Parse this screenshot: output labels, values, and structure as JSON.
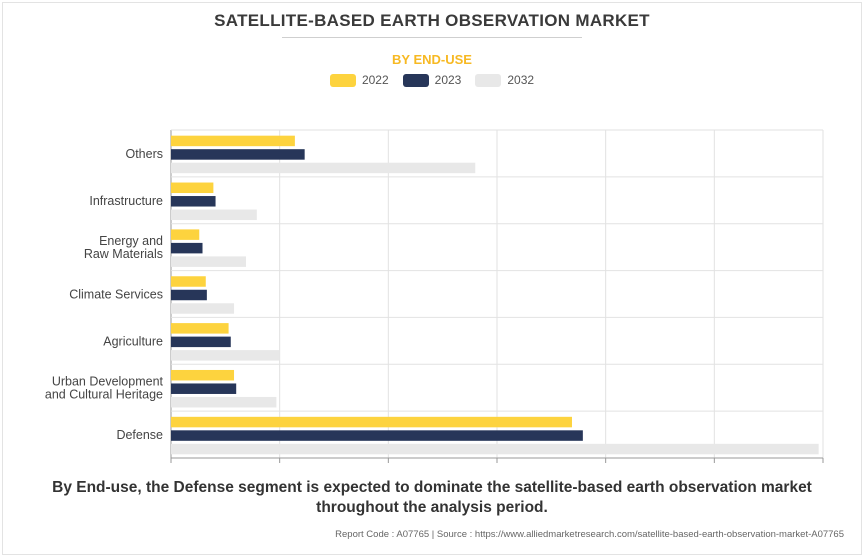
{
  "title": "SATELLITE-BASED EARTH OBSERVATION MARKET",
  "subtitle": "BY END-USE",
  "colors": {
    "2022": "#fdd33e",
    "2023": "#273659",
    "2032": "#e8e8e8"
  },
  "chart_data": {
    "type": "bar",
    "orientation": "horizontal",
    "categories": [
      "Others",
      "Infrastructure",
      "Energy and\nRaw Materials",
      "Climate Services",
      "Agriculture",
      "Urban Development\nand Cultural Heritage",
      "Defense"
    ],
    "series": [
      {
        "name": "2022",
        "color": "#fdd33e",
        "values": [
          1.14,
          0.39,
          0.26,
          0.32,
          0.53,
          0.58,
          3.69
        ]
      },
      {
        "name": "2023",
        "color": "#273659",
        "values": [
          1.23,
          0.41,
          0.29,
          0.33,
          0.55,
          0.6,
          3.79
        ]
      },
      {
        "name": "2032",
        "color": "#e8e8e8",
        "values": [
          2.8,
          0.79,
          0.69,
          0.58,
          1.0,
          0.97,
          5.96
        ]
      }
    ],
    "xlim": [
      0,
      6
    ],
    "grid": true,
    "legend": "top-center"
  },
  "footer": {
    "line1": "By End-use, the Defense segment is expected to dominate the satellite-based earth observation market",
    "line2": "throughout the analysis period.",
    "source": "Report Code : A07765  |  Source : https://www.alliedmarketresearch.com/satellite-based-earth-observation-market-A07765"
  }
}
